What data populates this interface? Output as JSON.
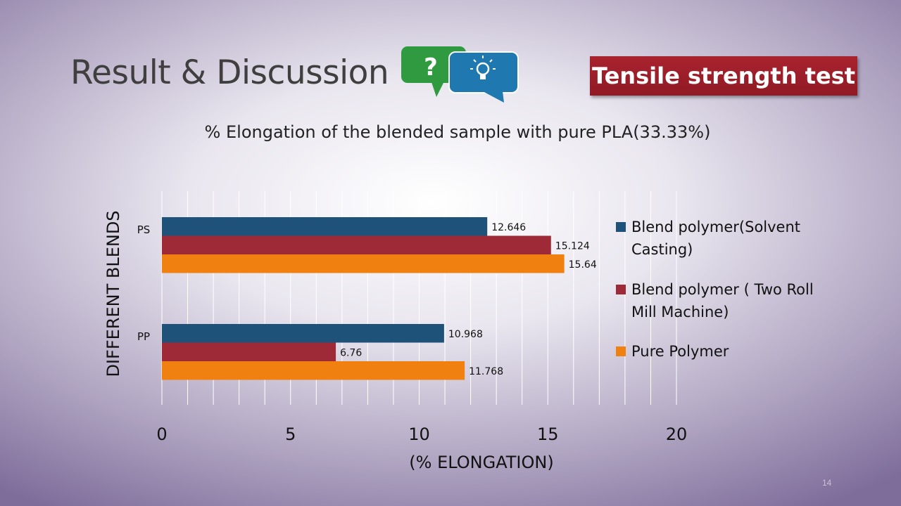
{
  "slide": {
    "title": "Result & Discussion",
    "badge": "Tensile strength test",
    "number": "14"
  },
  "icons": [
    "question-bubble-icon",
    "lightbulb-bubble-icon"
  ],
  "colors": {
    "badge": "#9d1f2b",
    "question_bubble": "#2f9a3f",
    "idea_bubble": "#1f78b0"
  },
  "chart_data": {
    "type": "bar",
    "orientation": "horizontal",
    "title": "% Elongation of the blended sample with pure PLA(33.33%)",
    "xlabel": "(% ELONGATION)",
    "ylabel": "DIFFERENT BLENDS",
    "categories": [
      "PS",
      "PP"
    ],
    "series": [
      {
        "name": "Blend polymer(Solvent Casting)",
        "color": "#1f5278",
        "values": [
          12.646,
          10.968
        ],
        "labels": [
          "12.646",
          "10.968"
        ]
      },
      {
        "name": "Blend polymer ( Two Roll Mill Machine)",
        "color": "#9e2a37",
        "values": [
          15.124,
          6.76
        ],
        "labels": [
          "15.124",
          "6.76"
        ]
      },
      {
        "name": "Pure Polymer",
        "color": "#f08010",
        "values": [
          15.64,
          11.768
        ],
        "labels": [
          "15.64",
          "11.768"
        ]
      }
    ],
    "legend": [
      {
        "line1": "Blend polymer(Solvent",
        "line2": "Casting)"
      },
      {
        "line1": "Blend polymer ( Two Roll",
        "line2": "Mill Machine)"
      },
      {
        "line1": "Pure Polymer",
        "line2": ""
      }
    ],
    "xlim": [
      0,
      20
    ],
    "xticks": [
      "0",
      "5",
      "10",
      "15",
      "20"
    ],
    "minor_gridlines_step": 1,
    "grid": true,
    "legend_position": "right"
  }
}
